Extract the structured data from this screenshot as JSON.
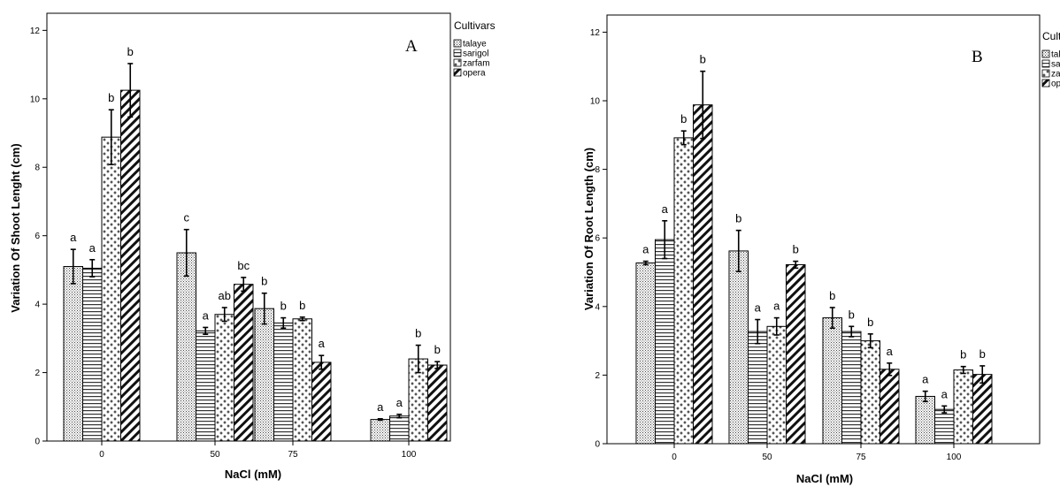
{
  "legend_title": "Cultivars",
  "cultivars": [
    "talaye",
    "sarigol",
    "zarfam",
    "opera"
  ],
  "chart_data": [
    {
      "type": "bar",
      "panel": "A",
      "title": "",
      "xlabel": "NaCl (mM)",
      "ylabel": "Variation Of  Shoot Lenght (cm)",
      "categories": [
        "0",
        "50",
        "75",
        "100"
      ],
      "ylim": [
        0,
        12.5
      ],
      "yticks": [
        0,
        2,
        4,
        6,
        8,
        10,
        12
      ],
      "grid": false,
      "legend": "outside-right",
      "series": [
        {
          "name": "talaye",
          "values": [
            5.1,
            5.5,
            3.87,
            0.63
          ],
          "errors": [
            0.5,
            0.68,
            0.45,
            0.02
          ],
          "labels": [
            "a",
            "c",
            "b",
            "a"
          ]
        },
        {
          "name": "sarigol",
          "values": [
            5.05,
            3.22,
            3.45,
            0.73
          ],
          "errors": [
            0.25,
            0.1,
            0.15,
            0.05
          ],
          "labels": [
            "a",
            "a",
            "b",
            "a"
          ]
        },
        {
          "name": "zarfam",
          "values": [
            8.88,
            3.7,
            3.57,
            2.4
          ],
          "errors": [
            0.8,
            0.2,
            0.05,
            0.4
          ],
          "labels": [
            "b",
            "ab",
            "b",
            "b"
          ]
        },
        {
          "name": "opera",
          "values": [
            10.25,
            4.58,
            2.3,
            2.22
          ],
          "errors": [
            0.78,
            0.2,
            0.2,
            0.1
          ],
          "labels": [
            "b",
            "bc",
            "a",
            "b"
          ]
        }
      ]
    },
    {
      "type": "bar",
      "panel": "B",
      "title": "",
      "xlabel": "NaCl (mM)",
      "ylabel": "Variation Of Root Length (cm)",
      "categories": [
        "0",
        "50",
        "75",
        "100"
      ],
      "ylim": [
        0,
        12.5
      ],
      "yticks": [
        0,
        2,
        4,
        6,
        8,
        10,
        12
      ],
      "grid": false,
      "legend": "outside-right",
      "series": [
        {
          "name": "talaye",
          "values": [
            5.27,
            5.62,
            3.67,
            1.38
          ],
          "errors": [
            0.05,
            0.6,
            0.3,
            0.15
          ],
          "labels": [
            "a",
            "b",
            "b",
            "a"
          ]
        },
        {
          "name": "sarigol",
          "values": [
            5.95,
            3.27,
            3.27,
            1.0
          ],
          "errors": [
            0.55,
            0.35,
            0.15,
            0.1
          ],
          "labels": [
            "a",
            "a",
            "b",
            "a"
          ]
        },
        {
          "name": "zarfam",
          "values": [
            8.92,
            3.42,
            3.0,
            2.15
          ],
          "errors": [
            0.2,
            0.25,
            0.2,
            0.1
          ],
          "labels": [
            "b",
            "a",
            "b",
            "b"
          ]
        },
        {
          "name": "opera",
          "values": [
            9.88,
            5.22,
            2.17,
            2.02
          ],
          "errors": [
            0.98,
            0.1,
            0.18,
            0.25
          ],
          "labels": [
            "b",
            "b",
            "a",
            "b"
          ]
        }
      ]
    }
  ]
}
